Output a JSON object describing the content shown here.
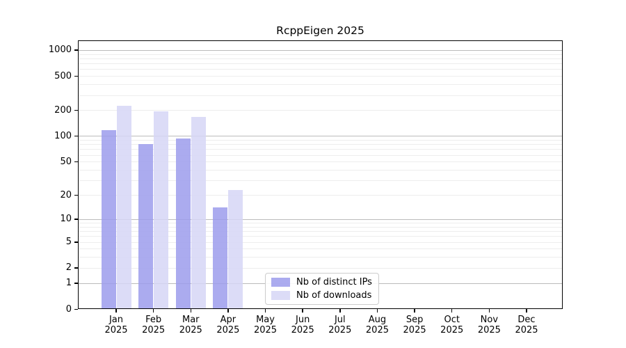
{
  "title": "RcppEigen 2025",
  "chart_data": {
    "type": "bar",
    "title": "RcppEigen 2025",
    "x_axis": {
      "months": [
        "Jan",
        "Feb",
        "Mar",
        "Apr",
        "May",
        "Jun",
        "Jul",
        "Aug",
        "Sep",
        "Oct",
        "Nov",
        "Dec"
      ],
      "year": "2025"
    },
    "y_axis": {
      "scale": "log10(1+y)",
      "ticks": [
        0,
        1,
        2,
        5,
        10,
        20,
        50,
        100,
        200,
        500,
        1000
      ],
      "ylim": [
        0,
        1000
      ],
      "grid": "on"
    },
    "series": [
      {
        "name": "Nb of distinct IPs",
        "color": "#9c9cec",
        "values": [
          118,
          80,
          94,
          14,
          0,
          0,
          0,
          0,
          0,
          0,
          0,
          0
        ]
      },
      {
        "name": "Nb of downloads",
        "color": "#d6d6f6",
        "values": [
          225,
          194,
          167,
          23,
          0,
          0,
          0,
          0,
          0,
          0,
          0,
          0
        ]
      }
    ],
    "legend": {
      "position": "bottom-center",
      "entries": [
        "Nb of distinct IPs",
        "Nb of downloads"
      ]
    },
    "colors": {
      "major_grid": "#bbbbbb",
      "minor_grid": "#ededed",
      "frame": "#000000"
    }
  }
}
